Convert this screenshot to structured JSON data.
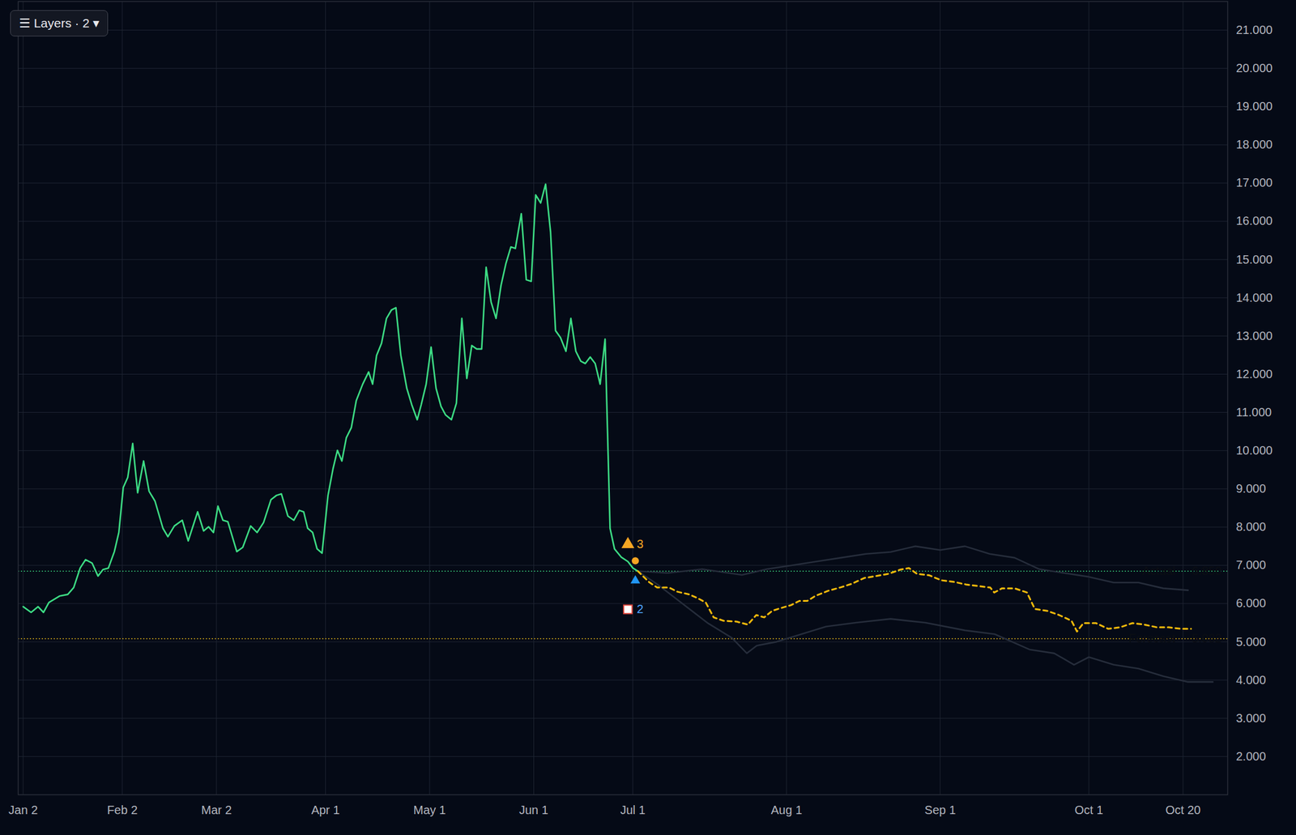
{
  "ui": {
    "button": "☰ Layers · 2 ▾"
  },
  "chart_data": {
    "type": "line",
    "xlim": [
      -1,
      243
    ],
    "xticks": [
      {
        "value": 0,
        "label": "Jan 2"
      },
      {
        "value": 20,
        "label": "Feb 2"
      },
      {
        "value": 39,
        "label": "Mar 2"
      },
      {
        "value": 61,
        "label": "Apr 1"
      },
      {
        "value": 82,
        "label": "May 1"
      },
      {
        "value": 103,
        "label": "Jun 1"
      },
      {
        "value": 123,
        "label": "Jul 1"
      },
      {
        "value": 154,
        "label": "Aug 1"
      },
      {
        "value": 185,
        "label": "Sep 1"
      },
      {
        "value": 215,
        "label": "Oct 1"
      },
      {
        "value": 234,
        "label": "Oct 20"
      }
    ],
    "ylim": [
      1,
      21.75
    ],
    "yticks": [
      {
        "value": 2,
        "label": "2.000"
      },
      {
        "value": 3,
        "label": "3.000"
      },
      {
        "value": 4,
        "label": "4.000"
      },
      {
        "value": 5,
        "label": "5.000"
      },
      {
        "value": 6,
        "label": "6.000"
      },
      {
        "value": 7,
        "label": "7.000"
      },
      {
        "value": 8,
        "label": "8.000"
      },
      {
        "value": 9,
        "label": "9.000"
      },
      {
        "value": 10,
        "label": "10.000"
      },
      {
        "value": 11,
        "label": "11.000"
      },
      {
        "value": 12,
        "label": "12.000"
      },
      {
        "value": 13,
        "label": "13.000"
      },
      {
        "value": 14,
        "label": "14.000"
      },
      {
        "value": 15,
        "label": "15.000"
      },
      {
        "value": 16,
        "label": "16.000"
      },
      {
        "value": 17,
        "label": "17.000"
      },
      {
        "value": 18,
        "label": "18.000"
      },
      {
        "value": 19,
        "label": "19.000"
      },
      {
        "value": 20,
        "label": "20.000"
      },
      {
        "value": 21,
        "label": "21.000"
      }
    ],
    "grid": true,
    "series": [
      {
        "color": "#262d3b",
        "line_style": "solid",
        "x": [
          124,
          130,
          137,
          145,
          150,
          155,
          160,
          165,
          170,
          175,
          180,
          185,
          190,
          195,
          200,
          205,
          210,
          215,
          220,
          225,
          230,
          235
        ],
        "values": [
          6.85,
          6.8,
          6.9,
          6.75,
          6.9,
          7.0,
          7.1,
          7.2,
          7.3,
          7.35,
          7.5,
          7.4,
          7.5,
          7.3,
          7.2,
          6.9,
          6.8,
          6.7,
          6.55,
          6.55,
          6.4,
          6.35
        ]
      },
      {
        "color": "#262d3b",
        "line_style": "solid",
        "x": [
          124,
          128,
          133,
          138,
          143,
          146,
          148,
          152,
          157,
          162,
          168,
          175,
          182,
          190,
          196,
          203,
          208,
          212,
          215,
          220,
          225,
          230,
          235,
          240
        ],
        "values": [
          6.85,
          6.5,
          6.0,
          5.5,
          5.1,
          4.7,
          4.9,
          5.0,
          5.2,
          5.4,
          5.5,
          5.6,
          5.5,
          5.3,
          5.2,
          4.8,
          4.7,
          4.4,
          4.6,
          4.4,
          4.3,
          4.1,
          3.95,
          3.95
        ]
      },
      {
        "color": "#3ddc84",
        "line_style": "solid",
        "x": [
          0,
          1.6,
          3,
          4.1,
          5.2,
          7.4,
          9,
          10.2,
          11.5,
          12.6,
          13.9,
          15.1,
          16.1,
          17.2,
          18.4,
          19.3,
          20.2,
          21.1,
          22.1,
          23.1,
          24.3,
          25.4,
          26.6,
          28.2,
          29.2,
          30.5,
          32.1,
          33.3,
          35.2,
          36.4,
          37.4,
          38.4,
          39.3,
          40.3,
          41.3,
          43.1,
          44.3,
          45.9,
          47.2,
          48.5,
          50,
          51.1,
          52.1,
          53.4,
          54.6,
          55.7,
          56.6,
          57.4,
          58.4,
          59.3,
          60.3,
          61.5,
          62.5,
          63.4,
          64.3,
          65.2,
          66.2,
          67.2,
          68.5,
          69.7,
          70.5,
          71.3,
          72.3,
          73.3,
          74.3,
          75.2,
          76.2,
          77.4,
          78.4,
          79.5,
          80.3,
          81.3,
          82.3,
          83.3,
          84.3,
          85.2,
          86.4,
          87.4,
          88.5,
          89.5,
          90.5,
          91.5,
          92.5,
          93.4,
          94.4,
          95.4,
          96.4,
          97.4,
          98.4,
          99.3,
          100.5,
          101.5,
          102.5,
          103.4,
          104.4,
          105.4,
          106.4,
          107.4,
          108.4,
          109.5,
          110.5,
          111.5,
          112.5,
          113.4,
          114.4,
          115.4,
          116.4,
          117.4,
          118.4,
          119.3,
          120.7,
          122,
          123,
          124
        ],
        "values": [
          5.92,
          5.77,
          5.92,
          5.77,
          6.03,
          6.2,
          6.24,
          6.42,
          6.93,
          7.15,
          7.06,
          6.72,
          6.89,
          6.93,
          7.36,
          7.86,
          9.04,
          9.3,
          10.19,
          8.9,
          9.73,
          8.94,
          8.68,
          7.97,
          7.75,
          8.03,
          8.18,
          7.64,
          8.4,
          7.9,
          8.01,
          7.86,
          8.55,
          8.18,
          8.14,
          7.36,
          7.47,
          8.03,
          7.86,
          8.12,
          8.72,
          8.83,
          8.87,
          8.29,
          8.18,
          8.44,
          8.4,
          7.97,
          7.86,
          7.43,
          7.32,
          8.83,
          9.52,
          10.01,
          9.73,
          10.34,
          10.6,
          11.31,
          11.74,
          12.06,
          11.74,
          12.49,
          12.81,
          13.46,
          13.68,
          13.74,
          12.49,
          11.63,
          11.2,
          10.81,
          11.2,
          11.74,
          12.71,
          11.63,
          11.16,
          10.94,
          10.81,
          11.24,
          13.46,
          11.89,
          12.75,
          12.66,
          12.66,
          14.8,
          13.89,
          13.46,
          14.32,
          14.9,
          15.33,
          15.29,
          16.2,
          14.47,
          14.43,
          16.69,
          16.48,
          16.97,
          15.72,
          13.14,
          12.96,
          12.6,
          13.46,
          12.6,
          12.34,
          12.28,
          12.45,
          12.28,
          11.74,
          12.92,
          7.97,
          7.43,
          7.21,
          7.1,
          6.93,
          6.85
        ]
      },
      {
        "color": "#f0b90b",
        "line_style": "dashed",
        "x": [
          124,
          126.2,
          127.9,
          130.3,
          132,
          134.4,
          136.1,
          137.7,
          139.3,
          141.3,
          143.9,
          146.2,
          147.9,
          149.5,
          151.1,
          152.8,
          154.9,
          156.6,
          158.2,
          159.8,
          162.3,
          164.8,
          167.2,
          169.7,
          172.1,
          174.6,
          177,
          178.7,
          180.3,
          182.8,
          185.2,
          187.7,
          190.2,
          192.6,
          195.1,
          195.9,
          197.5,
          200,
          202.5,
          204.1,
          206.6,
          209,
          211.5,
          212.6,
          213.9,
          216.4,
          218.9,
          221.3,
          223.8,
          226.2,
          228.7,
          231.1,
          233.6,
          235.6
        ],
        "values": [
          6.85,
          6.57,
          6.42,
          6.42,
          6.31,
          6.24,
          6.14,
          6.03,
          5.64,
          5.55,
          5.53,
          5.45,
          5.7,
          5.64,
          5.81,
          5.88,
          5.96,
          6.07,
          6.07,
          6.2,
          6.33,
          6.42,
          6.52,
          6.67,
          6.72,
          6.78,
          6.89,
          6.93,
          6.78,
          6.74,
          6.61,
          6.57,
          6.5,
          6.46,
          6.42,
          6.29,
          6.4,
          6.4,
          6.29,
          5.86,
          5.81,
          5.7,
          5.55,
          5.27,
          5.49,
          5.49,
          5.34,
          5.38,
          5.49,
          5.45,
          5.38,
          5.38,
          5.34,
          5.34
        ]
      }
    ],
    "reference_lines": [
      {
        "label": "Actual",
        "value": 6.85,
        "value_label": "6.850",
        "color": "#3ddc84"
      },
      {
        "label": "Forecast",
        "value": 5.082,
        "value_label": "5.082",
        "color": "#f5c518"
      }
    ],
    "points": [
      {
        "x": 123.5,
        "y": 7.12,
        "color": "#f5a623",
        "marker": "circle"
      },
      {
        "x": 123.5,
        "y": 6.6,
        "color": "#2196f3",
        "marker": "triangle"
      }
    ],
    "markers": [
      {
        "label": "3",
        "x": 122,
        "y": 7.55,
        "color": "#f5a623",
        "marker": "triangle"
      },
      {
        "label": "2",
        "x": 122,
        "y": 5.85,
        "color": "#4da3ff",
        "marker": "square"
      }
    ]
  }
}
